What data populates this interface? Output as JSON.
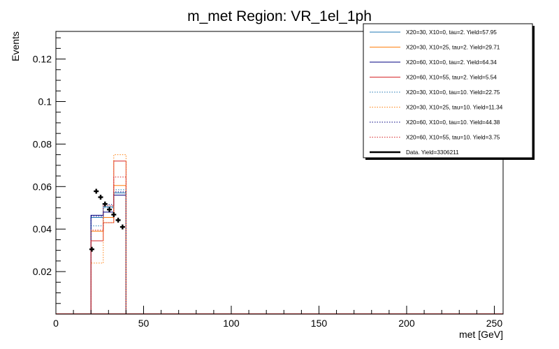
{
  "chart_data": {
    "type": "histogram",
    "title": "m_met Region: VR_1el_1ph",
    "xlabel": "met [GeV]",
    "ylabel": "Events",
    "xlim": [
      0,
      255
    ],
    "ylim": [
      0,
      0.133
    ],
    "x_major_ticks": [
      0,
      50,
      100,
      150,
      200,
      250
    ],
    "x_tick_labels": [
      "0",
      "50",
      "100",
      "150",
      "200",
      "250"
    ],
    "y_major_ticks": [
      0.02,
      0.04,
      0.06,
      0.08,
      0.1,
      0.12
    ],
    "y_tick_labels": [
      "0.02",
      "0.04",
      "0.06",
      "0.08",
      "0.1",
      "0.12"
    ],
    "bin_edges": [
      20,
      27,
      33,
      40
    ],
    "series": [
      {
        "name": "X20=30, X10=0, tau=2. Yield=57.95",
        "color": "#1f77b4",
        "style": "solid",
        "values": [
          0.0455,
          0.0505,
          0.057
        ]
      },
      {
        "name": "X20=30, X10=25, tau=2. Yield=29.71",
        "color": "#ff7f0e",
        "style": "solid",
        "values": [
          0.039,
          0.0455,
          0.0605
        ]
      },
      {
        "name": "X20=60, X10=0, tau=2. Yield=64.34",
        "color": "#000080",
        "style": "solid",
        "values": [
          0.0465,
          0.048,
          0.056
        ]
      },
      {
        "name": "X20=60, X10=55, tau=2. Yield=5.54",
        "color": "#d62728",
        "style": "solid",
        "values": [
          0.0345,
          0.043,
          0.072
        ]
      },
      {
        "name": "X20=30, X10=0, tau=10. Yield=22.75",
        "color": "#1f77b4",
        "style": "dotted",
        "values": [
          0.0415,
          0.05,
          0.0585
        ]
      },
      {
        "name": "X20=30, X10=25, tau=10. Yield=11.34",
        "color": "#ff7f0e",
        "style": "dotted",
        "values": [
          0.024,
          0.043,
          0.075
        ]
      },
      {
        "name": "X20=60, X10=0, tau=10. Yield=44.38",
        "color": "#000080",
        "style": "dotted",
        "values": [
          0.046,
          0.0515,
          0.0575
        ]
      },
      {
        "name": "X20=60, X10=55, tau=10. Yield=3.75",
        "color": "#d62728",
        "style": "dotted",
        "values": [
          0.0395,
          0.051,
          0.0645
        ]
      }
    ],
    "data_series": {
      "name": "Data. Yield=3306211",
      "color": "#000000",
      "x": [
        20.5,
        23,
        25.5,
        28,
        30.5,
        33,
        35.5,
        38
      ],
      "y": [
        0.0305,
        0.0578,
        0.055,
        0.0518,
        0.0492,
        0.0468,
        0.0442,
        0.041
      ]
    },
    "legend_position": "top-right"
  }
}
